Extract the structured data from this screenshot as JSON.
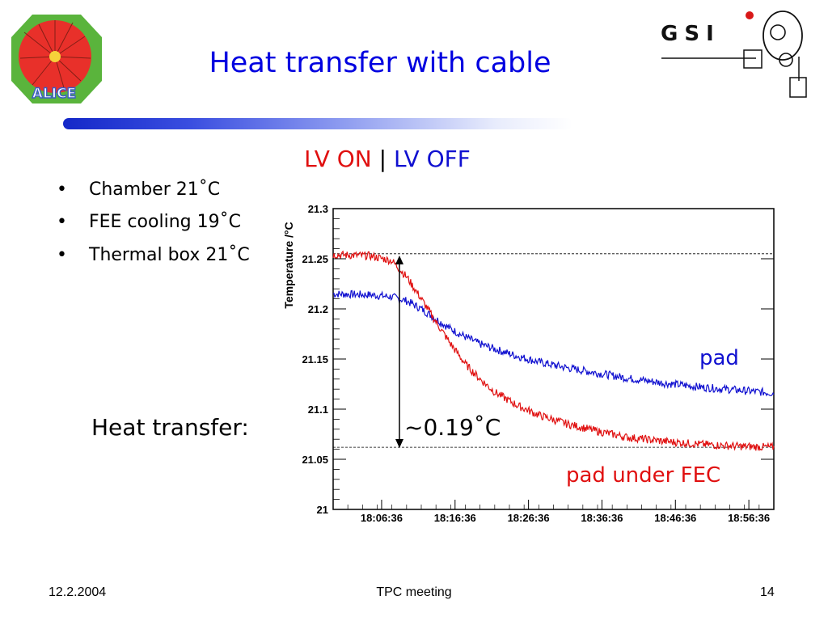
{
  "slide": {
    "title": "Heat transfer with cable",
    "subtitle": {
      "lv_on": "LV ON",
      "separator": "|",
      "lv_off": "LV OFF"
    },
    "bullets": [
      "Chamber 21˚C",
      "FEE cooling 19˚C",
      "Thermal box 21˚C"
    ],
    "bullet_marker": "•",
    "heat_transfer_label": "Heat transfer:",
    "delta_label": "~0.19˚C",
    "curve_labels": {
      "pad": "pad",
      "pad_under_fec": "pad under FEC"
    },
    "colors": {
      "title": "#0000e0",
      "pad": "#1010d0",
      "pad_under_fec": "#e01010",
      "lv_on": "#e01010",
      "lv_off": "#1010d0"
    },
    "logos": {
      "left": "ALICE",
      "right": "GSI"
    }
  },
  "footer": {
    "date": "12.2.2004",
    "center": "TPC meeting",
    "page": "14"
  },
  "chart_data": {
    "type": "line",
    "ylabel": "Temperature /°C",
    "xlabel": "",
    "ylim": [
      21.0,
      21.3
    ],
    "xlim": [
      0,
      60
    ],
    "y_ticks": [
      "21",
      "21.05",
      "21.1",
      "21.15",
      "21.2",
      "21.25",
      "21.3"
    ],
    "y_tick_values": [
      21.0,
      21.05,
      21.1,
      21.15,
      21.2,
      21.25,
      21.3
    ],
    "x_ticks": [
      "18:06:36",
      "18:16:36",
      "18:26:36",
      "18:36:36",
      "18:46:36",
      "18:56:36"
    ],
    "x_tick_values": [
      6.6,
      16.6,
      26.6,
      36.6,
      46.6,
      56.6
    ],
    "reference_lines": [
      21.255,
      21.062
    ],
    "series": [
      {
        "name": "pad",
        "color": "#1010d0",
        "x": [
          0,
          5,
          8,
          10,
          12,
          14,
          16,
          18,
          20,
          22,
          25,
          28,
          32,
          36,
          40,
          45,
          50,
          55,
          60
        ],
        "y": [
          21.215,
          21.214,
          21.212,
          21.208,
          21.2,
          21.19,
          21.18,
          21.172,
          21.165,
          21.16,
          21.153,
          21.147,
          21.141,
          21.136,
          21.131,
          21.126,
          21.122,
          21.119,
          21.116
        ]
      },
      {
        "name": "pad under FEC",
        "color": "#e01010",
        "x": [
          0,
          5,
          8,
          10,
          12,
          14,
          16,
          18,
          20,
          22,
          25,
          28,
          32,
          36,
          40,
          45,
          50,
          55,
          60
        ],
        "y": [
          21.254,
          21.253,
          21.248,
          21.232,
          21.21,
          21.187,
          21.165,
          21.145,
          21.13,
          21.117,
          21.104,
          21.094,
          21.085,
          21.078,
          21.072,
          21.068,
          21.065,
          21.063,
          21.062
        ]
      }
    ],
    "noise_amplitude": 0.004
  }
}
